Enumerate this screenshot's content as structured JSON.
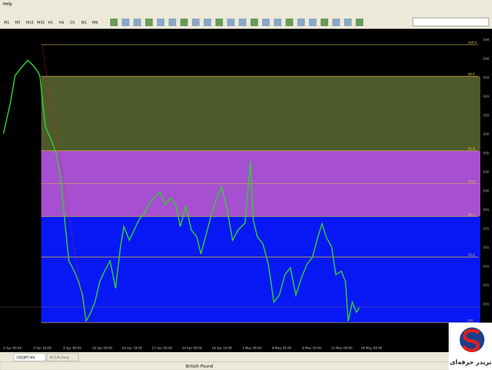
{
  "window": {
    "menu": "Help",
    "timeframes": [
      "M1",
      "M5",
      "M15",
      "M30",
      "H1",
      "H4",
      "D1",
      "W1",
      "MN"
    ]
  },
  "chart": {
    "fib_levels": [
      "100.0",
      "88.6",
      "61.8",
      "50.0",
      "38.2",
      "23.6",
      "0.0"
    ],
    "price_labels": [
      "104.",
      "104.",
      "103.",
      "103.",
      "103.",
      "102.",
      "102.",
      "102.",
      "102.",
      "101.",
      "101.",
      "101.",
      "101.",
      "101.",
      "101."
    ],
    "time_labels": [
      "2 Apr 00:00",
      "4 Apr 16:00",
      "9 Apr 00:00",
      "14 Apr 00:00",
      "16 Apr 16:00",
      "21 Apr 00:00",
      "24 Apr 00:00",
      "28 Apr 16:00",
      "1 May 08:00",
      "6 May 00:00",
      "8 May 16:00",
      "13 May 08:00",
      "16 May 00:00"
    ]
  },
  "tabs": [
    "USDJPY,H4",
    "#CLM,Daily"
  ],
  "status": "British Pound",
  "logo": "تریدر حرفه‌ای"
}
